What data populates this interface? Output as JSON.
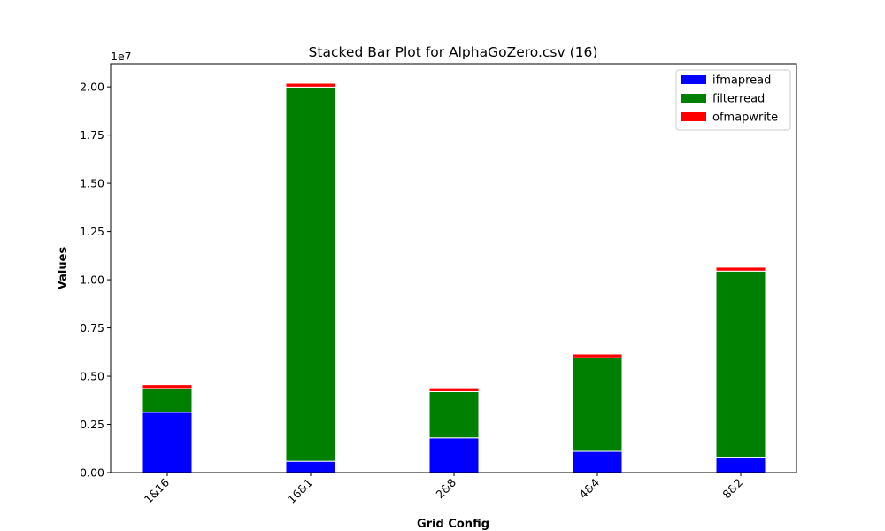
{
  "chart_data": {
    "type": "bar",
    "stacked": true,
    "title": "Stacked Bar Plot for AlphaGoZero.csv (16)",
    "xlabel": "Grid Config",
    "ylabel": "Values",
    "y_offset_text": "1e7",
    "categories": [
      "1&16",
      "16&1",
      "2&8",
      "4&4",
      "8&2"
    ],
    "series": [
      {
        "name": "ifmapread",
        "color": "#0000ff",
        "values": [
          3130000,
          590000,
          1800000,
          1100000,
          800000
        ]
      },
      {
        "name": "filterread",
        "color": "#008000",
        "values": [
          1230000,
          19400000,
          2400000,
          4850000,
          9650000
        ]
      },
      {
        "name": "ofmapwrite",
        "color": "#ff0000",
        "values": [
          200000,
          200000,
          200000,
          200000,
          200000
        ]
      }
    ],
    "ylim": [
      0,
      21200000
    ],
    "yticks": [
      0,
      2500000,
      5000000,
      7500000,
      10000000,
      12500000,
      15000000,
      17500000,
      20000000
    ],
    "ytick_labels": [
      "0.00",
      "0.25",
      "0.50",
      "0.75",
      "1.00",
      "1.25",
      "1.50",
      "1.75",
      "2.00"
    ],
    "legend_position": "top-right",
    "grid": false
  }
}
